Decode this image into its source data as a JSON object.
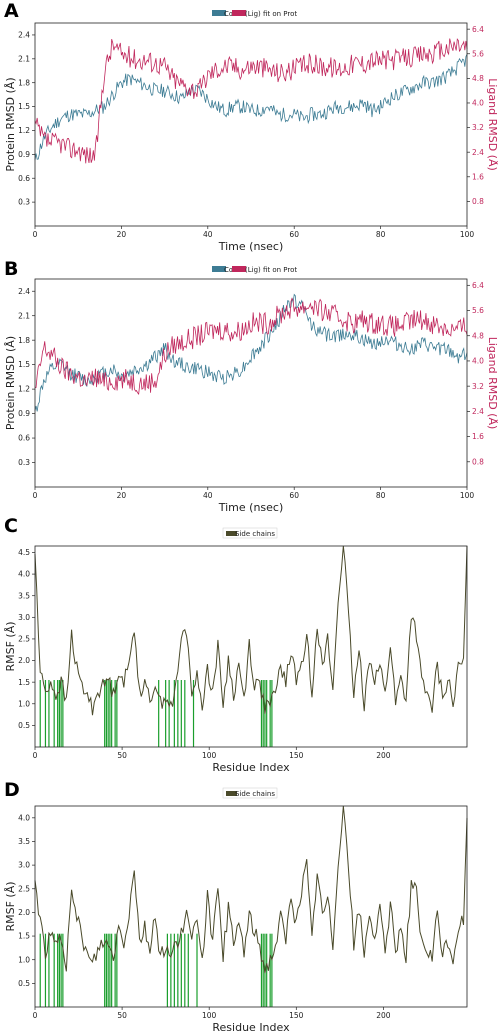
{
  "panels": [
    {
      "letter": "A"
    },
    {
      "letter": "B"
    },
    {
      "letter": "C"
    },
    {
      "letter": "D"
    }
  ],
  "colors": {
    "protein": "#3d7c94",
    "ligand": "#c0275c",
    "rmsf": "#4a4a2a",
    "contacts": "#1a9e2c"
  },
  "chart_data": [
    {
      "id": "A",
      "type": "line",
      "xlabel": "Time (nsec)",
      "ylabel": "Protein RMSD (Å)",
      "y2label": "Ligand RMSD (Å)",
      "legend": [
        "Cα",
        "(Lig) fit on Prot"
      ],
      "legend_placement": "top-center",
      "xlim": [
        0,
        100
      ],
      "ylim": [
        0,
        2.55
      ],
      "y2lim": [
        0,
        6.6
      ],
      "xticks": [
        0,
        20,
        40,
        60,
        80,
        100
      ],
      "yticks": [
        0.3,
        0.6,
        0.9,
        1.2,
        1.5,
        1.8,
        2.1,
        2.4
      ],
      "y2ticks": [
        0.8,
        1.6,
        2.4,
        3.2,
        4.0,
        4.8,
        5.6,
        6.4
      ],
      "series": [
        {
          "name": "Cα",
          "x": [
            0,
            2,
            4,
            6,
            8,
            10,
            12,
            14,
            16,
            18,
            20,
            22,
            24,
            26,
            28,
            30,
            32,
            34,
            36,
            38,
            40,
            42,
            44,
            46,
            48,
            50,
            52,
            54,
            56,
            58,
            60,
            62,
            64,
            66,
            68,
            70,
            72,
            74,
            76,
            78,
            80,
            82,
            84,
            86,
            88,
            90,
            92,
            94,
            96,
            98,
            100
          ],
          "values": [
            0.8,
            1.1,
            1.25,
            1.35,
            1.4,
            1.4,
            1.4,
            1.45,
            1.5,
            1.65,
            1.8,
            1.85,
            1.8,
            1.75,
            1.7,
            1.7,
            1.65,
            1.6,
            1.7,
            1.7,
            1.6,
            1.5,
            1.45,
            1.5,
            1.5,
            1.45,
            1.45,
            1.5,
            1.4,
            1.4,
            1.4,
            1.35,
            1.4,
            1.4,
            1.45,
            1.5,
            1.5,
            1.5,
            1.55,
            1.45,
            1.5,
            1.6,
            1.65,
            1.7,
            1.75,
            1.8,
            1.8,
            1.85,
            1.9,
            2.0,
            2.1
          ]
        },
        {
          "name": "(Lig) fit on Prot",
          "x": [
            0,
            2,
            4,
            6,
            8,
            10,
            12,
            14,
            16,
            18,
            20,
            22,
            24,
            26,
            28,
            30,
            32,
            34,
            36,
            38,
            40,
            42,
            44,
            46,
            48,
            50,
            52,
            54,
            56,
            58,
            60,
            62,
            64,
            66,
            68,
            70,
            72,
            74,
            76,
            78,
            80,
            82,
            84,
            86,
            88,
            90,
            92,
            94,
            96,
            98,
            100
          ],
          "values": [
            3.3,
            2.8,
            2.7,
            2.7,
            2.5,
            2.5,
            2.3,
            2.3,
            5.0,
            5.9,
            5.6,
            5.5,
            5.4,
            5.4,
            5.3,
            5.2,
            4.8,
            4.6,
            4.5,
            4.4,
            4.9,
            5.1,
            5.2,
            5.2,
            5.1,
            5.2,
            5.2,
            5.1,
            5.0,
            5.0,
            5.1,
            5.2,
            5.3,
            5.2,
            5.2,
            5.1,
            5.2,
            5.3,
            5.3,
            5.4,
            5.4,
            5.4,
            5.4,
            5.5,
            5.5,
            5.6,
            5.6,
            5.7,
            5.8,
            5.9,
            5.8
          ]
        }
      ]
    },
    {
      "id": "B",
      "type": "line",
      "xlabel": "Time (nsec)",
      "ylabel": "Protein RMSD (Å)",
      "y2label": "Ligand RMSD (Å)",
      "legend": [
        "Cα",
        "(Lig) fit on Prot"
      ],
      "legend_placement": "top-center",
      "xlim": [
        0,
        100
      ],
      "ylim": [
        0,
        2.55
      ],
      "y2lim": [
        0,
        6.6
      ],
      "xticks": [
        0,
        20,
        40,
        60,
        80,
        100
      ],
      "yticks": [
        0.3,
        0.6,
        0.9,
        1.2,
        1.5,
        1.8,
        2.1,
        2.4
      ],
      "y2ticks": [
        0.8,
        1.6,
        2.4,
        3.2,
        4.0,
        4.8,
        5.6,
        6.4
      ],
      "series": [
        {
          "name": "Cα",
          "x": [
            0,
            2,
            4,
            6,
            8,
            10,
            12,
            14,
            16,
            18,
            20,
            22,
            24,
            26,
            28,
            30,
            32,
            34,
            36,
            38,
            40,
            42,
            44,
            46,
            48,
            50,
            52,
            54,
            56,
            58,
            60,
            62,
            64,
            66,
            68,
            70,
            72,
            74,
            76,
            78,
            80,
            82,
            84,
            86,
            88,
            90,
            92,
            94,
            96,
            98,
            100
          ],
          "values": [
            0.9,
            1.3,
            1.45,
            1.5,
            1.4,
            1.35,
            1.3,
            1.35,
            1.4,
            1.45,
            1.35,
            1.4,
            1.45,
            1.5,
            1.6,
            1.7,
            1.55,
            1.5,
            1.45,
            1.45,
            1.4,
            1.35,
            1.35,
            1.4,
            1.45,
            1.6,
            1.7,
            1.85,
            2.0,
            2.2,
            2.3,
            2.2,
            2.0,
            1.9,
            1.85,
            1.85,
            1.9,
            1.85,
            1.8,
            1.75,
            1.8,
            1.8,
            1.75,
            1.7,
            1.7,
            1.75,
            1.7,
            1.7,
            1.65,
            1.6,
            1.65
          ]
        },
        {
          "name": "(Lig) fit on Prot",
          "x": [
            0,
            2,
            4,
            6,
            8,
            10,
            12,
            14,
            16,
            18,
            20,
            22,
            24,
            26,
            28,
            30,
            32,
            34,
            36,
            38,
            40,
            42,
            44,
            46,
            48,
            50,
            52,
            54,
            56,
            58,
            60,
            62,
            64,
            66,
            68,
            70,
            72,
            74,
            76,
            78,
            80,
            82,
            84,
            86,
            88,
            90,
            92,
            94,
            96,
            98,
            100
          ],
          "values": [
            3.0,
            4.4,
            4.2,
            3.8,
            3.6,
            3.5,
            3.3,
            3.5,
            3.3,
            3.4,
            3.4,
            3.4,
            3.3,
            3.3,
            3.4,
            4.2,
            4.5,
            4.6,
            4.7,
            4.8,
            4.9,
            5.0,
            5.0,
            4.9,
            5.0,
            5.2,
            5.2,
            5.2,
            5.4,
            5.6,
            5.7,
            5.7,
            5.8,
            5.6,
            5.5,
            5.4,
            5.3,
            5.2,
            5.3,
            5.2,
            5.2,
            5.1,
            5.1,
            5.2,
            5.3,
            5.3,
            5.2,
            5.1,
            5.0,
            5.0,
            5.1
          ]
        }
      ]
    },
    {
      "id": "C",
      "type": "line",
      "xlabel": "Residue Index",
      "ylabel": "RMSF (Å)",
      "legend": [
        "Side chains"
      ],
      "legend_placement": "top-center",
      "xlim": [
        0,
        248
      ],
      "ylim": [
        0,
        4.65
      ],
      "xticks": [
        0,
        50,
        100,
        150,
        200
      ],
      "yticks": [
        0.5,
        1.0,
        1.5,
        2.0,
        2.5,
        3.0,
        3.5,
        4.0,
        4.5
      ],
      "contact_residues": [
        3,
        6,
        8,
        11,
        13,
        14,
        15,
        16,
        40,
        41,
        42,
        43,
        44,
        46,
        47,
        71,
        75,
        77,
        80,
        82,
        84,
        86,
        91,
        130,
        131,
        132,
        133,
        135,
        136
      ],
      "series": [
        {
          "name": "Side chains",
          "x": [
            0,
            3,
            6,
            9,
            12,
            15,
            18,
            21,
            24,
            27,
            30,
            33,
            36,
            39,
            42,
            45,
            48,
            51,
            54,
            57,
            60,
            63,
            66,
            69,
            72,
            75,
            78,
            81,
            84,
            87,
            90,
            93,
            96,
            99,
            102,
            105,
            108,
            111,
            114,
            117,
            120,
            123,
            126,
            129,
            132,
            135,
            138,
            141,
            144,
            147,
            150,
            153,
            156,
            159,
            162,
            165,
            168,
            171,
            174,
            177,
            180,
            183,
            186,
            189,
            192,
            195,
            198,
            201,
            204,
            207,
            210,
            213,
            216,
            219,
            222,
            225,
            228,
            231,
            234,
            237,
            240,
            243,
            246,
            248
          ],
          "values": [
            4.5,
            1.7,
            1.3,
            1.5,
            1.2,
            1.5,
            1.0,
            2.6,
            1.8,
            1.4,
            1.2,
            0.9,
            1.3,
            1.4,
            1.6,
            1.2,
            1.8,
            1.5,
            1.9,
            2.8,
            1.3,
            1.4,
            1.1,
            1.5,
            1.0,
            1.2,
            0.9,
            1.4,
            2.5,
            2.7,
            1.3,
            1.6,
            1.0,
            1.8,
            1.3,
            2.3,
            1.0,
            2.0,
            1.2,
            1.9,
            1.1,
            2.4,
            1.4,
            1.5,
            0.9,
            1.0,
            1.2,
            1.9,
            1.5,
            2.2,
            1.6,
            1.8,
            2.6,
            1.3,
            2.9,
            1.8,
            2.5,
            1.3,
            3.4,
            4.7,
            3.0,
            1.2,
            2.2,
            1.0,
            2.1,
            1.6,
            1.9,
            1.2,
            2.4,
            1.0,
            1.6,
            1.1,
            3.1,
            2.6,
            1.5,
            1.2,
            0.9,
            1.9,
            1.1,
            1.6,
            1.0,
            1.8,
            2.0,
            4.6
          ]
        }
      ]
    },
    {
      "id": "D",
      "type": "line",
      "xlabel": "Residue Index",
      "ylabel": "RMSF (Å)",
      "legend": [
        "Side chains"
      ],
      "legend_placement": "top-center",
      "xlim": [
        0,
        248
      ],
      "ylim": [
        0,
        4.25
      ],
      "xticks": [
        0,
        50,
        100,
        150,
        200
      ],
      "yticks": [
        0.5,
        1.0,
        1.5,
        2.0,
        2.5,
        3.0,
        3.5,
        4.0
      ],
      "contact_residues": [
        3,
        6,
        8,
        11,
        13,
        14,
        15,
        16,
        40,
        41,
        42,
        43,
        44,
        46,
        47,
        76,
        78,
        80,
        82,
        84,
        86,
        88,
        93,
        130,
        131,
        132,
        133,
        135,
        136
      ],
      "series": [
        {
          "name": "Side chains",
          "x": [
            0,
            3,
            6,
            9,
            12,
            15,
            18,
            21,
            24,
            27,
            30,
            33,
            36,
            39,
            42,
            45,
            48,
            51,
            54,
            57,
            60,
            63,
            66,
            69,
            72,
            75,
            78,
            81,
            84,
            87,
            90,
            93,
            96,
            99,
            102,
            105,
            108,
            111,
            114,
            117,
            120,
            123,
            126,
            129,
            132,
            135,
            138,
            141,
            144,
            147,
            150,
            153,
            156,
            159,
            162,
            165,
            168,
            171,
            174,
            177,
            180,
            183,
            186,
            189,
            192,
            195,
            198,
            201,
            204,
            207,
            210,
            213,
            216,
            219,
            222,
            225,
            228,
            231,
            234,
            237,
            240,
            243,
            246,
            248
          ],
          "values": [
            2.7,
            1.8,
            1.2,
            1.5,
            1.3,
            1.5,
            0.9,
            2.3,
            1.9,
            1.5,
            1.1,
            0.9,
            1.2,
            1.4,
            1.3,
            1.1,
            1.7,
            1.4,
            2.0,
            3.0,
            1.4,
            1.7,
            1.2,
            1.9,
            1.1,
            1.3,
            1.0,
            1.4,
            1.5,
            2.0,
            1.3,
            2.0,
            1.0,
            2.3,
            1.4,
            2.4,
            1.1,
            2.1,
            1.3,
            1.8,
            1.2,
            1.9,
            1.6,
            1.3,
            0.8,
            1.0,
            1.3,
            1.9,
            1.4,
            2.4,
            1.7,
            2.5,
            3.0,
            1.4,
            2.9,
            1.9,
            2.3,
            1.3,
            3.1,
            4.3,
            3.0,
            1.3,
            2.1,
            1.1,
            2.0,
            1.5,
            2.0,
            1.1,
            2.2,
            1.2,
            1.7,
            1.1,
            2.6,
            2.4,
            1.3,
            1.2,
            1.0,
            2.0,
            1.1,
            1.4,
            1.0,
            1.7,
            1.8,
            3.9
          ]
        }
      ]
    }
  ]
}
